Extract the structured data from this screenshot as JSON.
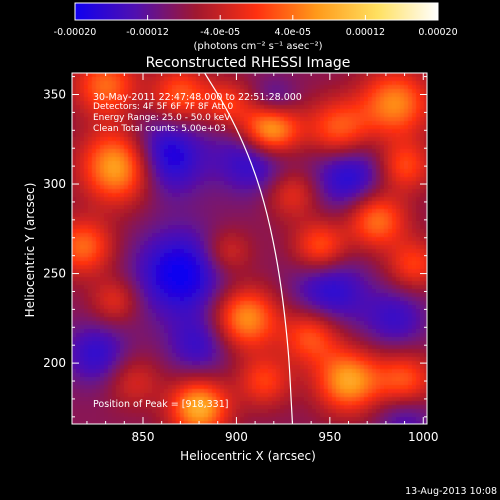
{
  "chart_data": {
    "type": "heatmap",
    "title": "Reconstructed RHESSI Image",
    "xlabel": "Heliocentric X (arcsec)",
    "ylabel": "Heliocentric Y (arcsec)",
    "xlim": [
      812,
      1002
    ],
    "ylim": [
      166,
      362
    ],
    "x_ticks": [
      850,
      900,
      950,
      1000
    ],
    "y_ticks": [
      200,
      250,
      300,
      350
    ],
    "colorbar": {
      "range": [
        -0.0002,
        0.0002
      ],
      "tick_labels": [
        "-0.00020",
        "-0.00012",
        "-4.0e-05",
        "4.0e-05",
        "0.00012",
        "0.00020"
      ],
      "unit_label": "(photons cm⁻² s⁻¹ asec⁻²)",
      "colors": [
        "#1000f0",
        "#5010b0",
        "#a01830",
        "#ff3010",
        "#ff9a1a",
        "#ffe060",
        "#ffffff"
      ]
    },
    "annotations": {
      "time_range": "30-May-2011 22:47:48.000 to 22:51:28.000",
      "detectors": "Detectors: 4F 5F 6F 7F 8F  Att 0",
      "energy_range": "Energy Range: 25.0 - 50.0 keV",
      "clean": "Clean    Total counts: 5.00e+03",
      "peak": "Position of Peak = [918,331]",
      "footer_date": "13-Aug-2013 10:08"
    },
    "sources": [
      {
        "x": 918,
        "y": 331,
        "v": 0.00021,
        "s": 11
      },
      {
        "x": 838,
        "y": 310,
        "v": 0.00019,
        "s": 14
      },
      {
        "x": 830,
        "y": 355,
        "v": 0.00012,
        "s": 12
      },
      {
        "x": 870,
        "y": 350,
        "v": 0.00011,
        "s": 11
      },
      {
        "x": 895,
        "y": 345,
        "v": 8e-05,
        "s": 9
      },
      {
        "x": 955,
        "y": 330,
        "v": 0.00012,
        "s": 12
      },
      {
        "x": 985,
        "y": 345,
        "v": 0.00014,
        "s": 13
      },
      {
        "x": 990,
        "y": 310,
        "v": 0.0001,
        "s": 10
      },
      {
        "x": 975,
        "y": 280,
        "v": 0.00013,
        "s": 11
      },
      {
        "x": 995,
        "y": 255,
        "v": 9e-05,
        "s": 10
      },
      {
        "x": 945,
        "y": 265,
        "v": 0.00011,
        "s": 10
      },
      {
        "x": 930,
        "y": 295,
        "v": 8e-05,
        "s": 10
      },
      {
        "x": 895,
        "y": 262,
        "v": 7e-05,
        "s": 9
      },
      {
        "x": 818,
        "y": 265,
        "v": 0.00012,
        "s": 11
      },
      {
        "x": 835,
        "y": 235,
        "v": 7e-05,
        "s": 9
      },
      {
        "x": 905,
        "y": 225,
        "v": 0.00015,
        "s": 12
      },
      {
        "x": 940,
        "y": 215,
        "v": 0.00011,
        "s": 11
      },
      {
        "x": 960,
        "y": 190,
        "v": 0.00016,
        "s": 12
      },
      {
        "x": 915,
        "y": 190,
        "v": 9e-05,
        "s": 10
      },
      {
        "x": 880,
        "y": 175,
        "v": 0.00017,
        "s": 11
      },
      {
        "x": 990,
        "y": 190,
        "v": 0.00011,
        "s": 11
      },
      {
        "x": 845,
        "y": 190,
        "v": 6e-05,
        "s": 10
      },
      {
        "x": 870,
        "y": 250,
        "v": -0.00012,
        "s": 17
      },
      {
        "x": 860,
        "y": 315,
        "v": -0.00013,
        "s": 15
      },
      {
        "x": 910,
        "y": 315,
        "v": -0.0001,
        "s": 14
      },
      {
        "x": 920,
        "y": 345,
        "v": -8e-05,
        "s": 9
      },
      {
        "x": 960,
        "y": 305,
        "v": -0.0001,
        "s": 14
      },
      {
        "x": 950,
        "y": 240,
        "v": -9e-05,
        "s": 14
      },
      {
        "x": 985,
        "y": 225,
        "v": -7e-05,
        "s": 12
      },
      {
        "x": 825,
        "y": 205,
        "v": -8e-05,
        "s": 12
      },
      {
        "x": 880,
        "y": 210,
        "v": -7e-05,
        "s": 12
      },
      {
        "x": 990,
        "y": 170,
        "v": -6e-05,
        "s": 11
      }
    ],
    "limb_curve": [
      [
        883,
        362
      ],
      [
        896,
        340
      ],
      [
        907,
        315
      ],
      [
        915,
        290
      ],
      [
        921,
        262
      ],
      [
        925,
        235
      ],
      [
        928,
        205
      ],
      [
        929,
        185
      ],
      [
        930,
        166
      ]
    ]
  }
}
